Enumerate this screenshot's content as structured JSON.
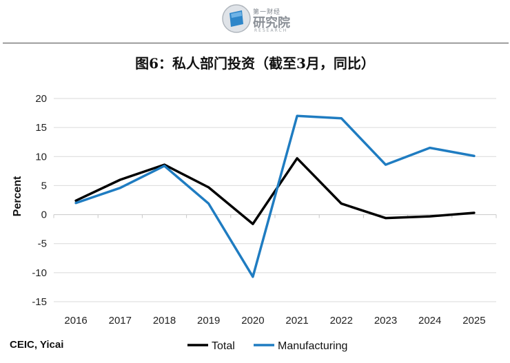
{
  "logo": {
    "top_text": "第一财经",
    "main_text": "研究院",
    "sub_text": "RESEARCH"
  },
  "title": "图6：私人部门投资（截至3月，同比）",
  "source": "CEIC, Yicai",
  "chart_data": {
    "type": "line",
    "title": "图6：私人部门投资（截至3月，同比）",
    "ylabel": "Percent",
    "xlabel": "",
    "x": [
      "2016",
      "2017",
      "2018",
      "2019",
      "2020",
      "2021",
      "2022",
      "2023",
      "2024",
      "2025"
    ],
    "ylim": [
      -15,
      20
    ],
    "yticks": [
      20,
      15,
      10,
      5,
      0,
      -5,
      -10,
      -15
    ],
    "grid": true,
    "legend_position": "bottom",
    "series": [
      {
        "name": "Total",
        "color": "#000000",
        "values": [
          2.4,
          6.0,
          8.6,
          4.7,
          -1.6,
          9.7,
          1.9,
          -0.6,
          -0.3,
          0.3
        ]
      },
      {
        "name": "Manufacturing",
        "color": "#1f7cc1",
        "values": [
          2.0,
          4.6,
          8.4,
          1.9,
          -10.7,
          17.0,
          16.6,
          8.6,
          11.5,
          10.1
        ]
      }
    ]
  }
}
